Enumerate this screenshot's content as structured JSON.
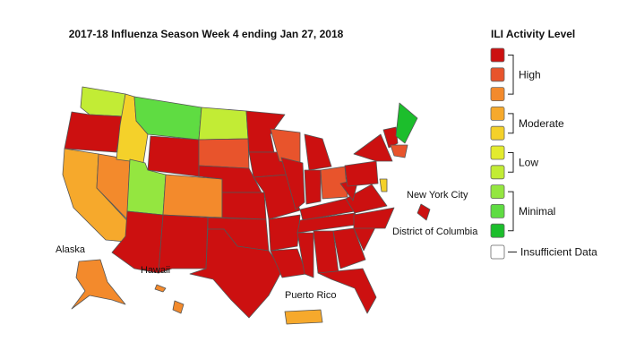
{
  "header": {
    "title": "2017-18 Influenza Season Week 4 ending Jan 27, 2018"
  },
  "legend": {
    "title": "ILI Activity Level",
    "levels": [
      {
        "label": "High",
        "colors": [
          "#cc1010",
          "#e8542c",
          "#f38a2c"
        ]
      },
      {
        "label": "Moderate",
        "colors": [
          "#f6a92c",
          "#f4d12a"
        ]
      },
      {
        "label": "Low",
        "colors": [
          "#e3eb2e",
          "#c2ec35"
        ]
      },
      {
        "label": "Minimal",
        "colors": [
          "#94e640",
          "#5fdc42",
          "#1cbe2c"
        ]
      }
    ],
    "insufficient": {
      "label": "Insufficient Data",
      "color": "#ffffff"
    }
  },
  "map_labels": {
    "alaska": "Alaska",
    "hawaii": "Hawaii",
    "puerto_rico": "Puerto Rico",
    "nyc": "New York City",
    "dc": "District of Columbia"
  }
}
